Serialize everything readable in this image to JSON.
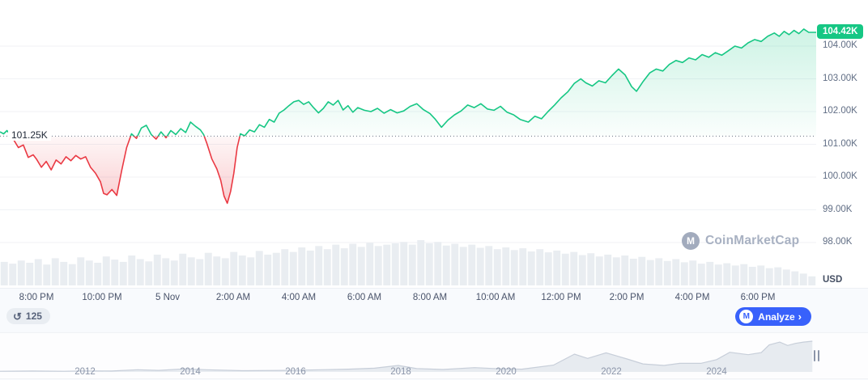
{
  "ui": {
    "watermark_text": "CoinMarketCap",
    "logo_letter": "M",
    "baseline_label": "101.25K",
    "price_badge": "104.42K",
    "unit_label": "USD",
    "toolbar": {
      "history_icon": "↺",
      "history_count": "125",
      "analyze_label": "Analyze",
      "chevron_right": "›"
    },
    "colors": {
      "up": "#16c784",
      "down": "#ea3943",
      "accent": "#3861fb"
    }
  },
  "chart_data": [
    {
      "type": "line",
      "ylabel": "USD",
      "baseline": 101.25,
      "last_price": 104.42,
      "ylim": [
        97.6,
        104.9
      ],
      "grid": true,
      "y_ticks": [
        {
          "label": "104.00K",
          "value": 104
        },
        {
          "label": "103.00K",
          "value": 103
        },
        {
          "label": "102.00K",
          "value": 102
        },
        {
          "label": "101.00K",
          "value": 101
        },
        {
          "label": "100.00K",
          "value": 100
        },
        {
          "label": "99.00K",
          "value": 99
        },
        {
          "label": "98.00K",
          "value": 98
        }
      ],
      "x_ticks": [
        {
          "label": "8:00 PM",
          "t": 1
        },
        {
          "label": "10:00 PM",
          "t": 3
        },
        {
          "label": "5 Nov",
          "t": 5
        },
        {
          "label": "2:00 AM",
          "t": 7
        },
        {
          "label": "4:00 AM",
          "t": 9
        },
        {
          "label": "6:00 AM",
          "t": 11
        },
        {
          "label": "8:00 AM",
          "t": 13
        },
        {
          "label": "10:00 AM",
          "t": 15
        },
        {
          "label": "12:00 PM",
          "t": 17
        },
        {
          "label": "2:00 PM",
          "t": 19
        },
        {
          "label": "4:00 PM",
          "t": 21
        },
        {
          "label": "6:00 PM",
          "t": 23
        }
      ],
      "series": [
        [
          -0.11,
          101.38
        ],
        [
          0,
          101.32
        ],
        [
          0.1,
          101.42
        ],
        [
          0.2,
          101.3
        ],
        [
          0.3,
          101.15
        ],
        [
          0.45,
          100.9
        ],
        [
          0.6,
          100.98
        ],
        [
          0.75,
          100.6
        ],
        [
          0.9,
          100.68
        ],
        [
          1.0,
          100.55
        ],
        [
          1.15,
          100.3
        ],
        [
          1.3,
          100.48
        ],
        [
          1.45,
          100.22
        ],
        [
          1.6,
          100.52
        ],
        [
          1.75,
          100.4
        ],
        [
          1.9,
          100.62
        ],
        [
          2.05,
          100.5
        ],
        [
          2.2,
          100.66
        ],
        [
          2.35,
          100.55
        ],
        [
          2.5,
          100.62
        ],
        [
          2.65,
          100.3
        ],
        [
          2.8,
          100.12
        ],
        [
          2.95,
          99.86
        ],
        [
          3.05,
          99.5
        ],
        [
          3.15,
          99.46
        ],
        [
          3.3,
          99.62
        ],
        [
          3.45,
          99.44
        ],
        [
          3.6,
          100.2
        ],
        [
          3.75,
          100.9
        ],
        [
          3.9,
          101.32
        ],
        [
          4.05,
          101.18
        ],
        [
          4.2,
          101.5
        ],
        [
          4.35,
          101.58
        ],
        [
          4.5,
          101.3
        ],
        [
          4.65,
          101.16
        ],
        [
          4.8,
          101.38
        ],
        [
          4.95,
          101.2
        ],
        [
          5.1,
          101.42
        ],
        [
          5.25,
          101.3
        ],
        [
          5.4,
          101.48
        ],
        [
          5.55,
          101.36
        ],
        [
          5.7,
          101.68
        ],
        [
          5.85,
          101.55
        ],
        [
          6.0,
          101.44
        ],
        [
          6.1,
          101.3
        ],
        [
          6.2,
          101.02
        ],
        [
          6.35,
          100.55
        ],
        [
          6.5,
          100.25
        ],
        [
          6.62,
          99.9
        ],
        [
          6.72,
          99.42
        ],
        [
          6.82,
          99.2
        ],
        [
          6.92,
          99.56
        ],
        [
          7.02,
          100.12
        ],
        [
          7.12,
          100.9
        ],
        [
          7.22,
          101.32
        ],
        [
          7.35,
          101.26
        ],
        [
          7.5,
          101.44
        ],
        [
          7.65,
          101.38
        ],
        [
          7.8,
          101.6
        ],
        [
          7.95,
          101.52
        ],
        [
          8.1,
          101.76
        ],
        [
          8.25,
          101.68
        ],
        [
          8.4,
          101.95
        ],
        [
          8.55,
          102.05
        ],
        [
          8.7,
          102.18
        ],
        [
          8.85,
          102.3
        ],
        [
          9.0,
          102.34
        ],
        [
          9.15,
          102.22
        ],
        [
          9.3,
          102.3
        ],
        [
          9.45,
          102.12
        ],
        [
          9.6,
          101.96
        ],
        [
          9.75,
          102.1
        ],
        [
          9.9,
          102.3
        ],
        [
          10.05,
          102.2
        ],
        [
          10.2,
          102.34
        ],
        [
          10.35,
          102.05
        ],
        [
          10.5,
          102.18
        ],
        [
          10.65,
          101.98
        ],
        [
          10.8,
          102.12
        ],
        [
          11.0,
          102.04
        ],
        [
          11.2,
          102.0
        ],
        [
          11.4,
          102.1
        ],
        [
          11.6,
          101.95
        ],
        [
          11.8,
          102.06
        ],
        [
          12.0,
          101.96
        ],
        [
          12.2,
          102.02
        ],
        [
          12.4,
          102.16
        ],
        [
          12.6,
          102.24
        ],
        [
          12.8,
          102.06
        ],
        [
          13.0,
          101.94
        ],
        [
          13.15,
          101.78
        ],
        [
          13.35,
          101.52
        ],
        [
          13.55,
          101.74
        ],
        [
          13.75,
          101.9
        ],
        [
          13.95,
          102.02
        ],
        [
          14.15,
          102.2
        ],
        [
          14.35,
          102.12
        ],
        [
          14.55,
          102.24
        ],
        [
          14.75,
          102.08
        ],
        [
          14.95,
          102.04
        ],
        [
          15.15,
          102.16
        ],
        [
          15.35,
          101.98
        ],
        [
          15.55,
          101.9
        ],
        [
          15.75,
          101.76
        ],
        [
          16.0,
          101.68
        ],
        [
          16.2,
          101.86
        ],
        [
          16.4,
          101.78
        ],
        [
          16.6,
          102.0
        ],
        [
          16.8,
          102.2
        ],
        [
          17.0,
          102.42
        ],
        [
          17.2,
          102.6
        ],
        [
          17.4,
          102.86
        ],
        [
          17.6,
          103.0
        ],
        [
          17.75,
          102.88
        ],
        [
          17.95,
          102.78
        ],
        [
          18.15,
          102.94
        ],
        [
          18.35,
          102.88
        ],
        [
          18.55,
          103.1
        ],
        [
          18.75,
          103.3
        ],
        [
          18.95,
          103.12
        ],
        [
          19.15,
          102.76
        ],
        [
          19.3,
          102.62
        ],
        [
          19.5,
          102.92
        ],
        [
          19.7,
          103.18
        ],
        [
          19.9,
          103.3
        ],
        [
          20.1,
          103.24
        ],
        [
          20.3,
          103.44
        ],
        [
          20.5,
          103.56
        ],
        [
          20.7,
          103.5
        ],
        [
          20.9,
          103.64
        ],
        [
          21.1,
          103.58
        ],
        [
          21.3,
          103.74
        ],
        [
          21.5,
          103.66
        ],
        [
          21.7,
          103.8
        ],
        [
          21.9,
          103.72
        ],
        [
          22.1,
          103.86
        ],
        [
          22.3,
          104.0
        ],
        [
          22.5,
          103.94
        ],
        [
          22.7,
          104.1
        ],
        [
          22.9,
          104.2
        ],
        [
          23.1,
          104.14
        ],
        [
          23.3,
          104.3
        ],
        [
          23.5,
          104.4
        ],
        [
          23.65,
          104.3
        ],
        [
          23.8,
          104.45
        ],
        [
          23.95,
          104.35
        ],
        [
          24.1,
          104.48
        ],
        [
          24.25,
          104.38
        ],
        [
          24.4,
          104.52
        ],
        [
          24.55,
          104.42
        ],
        [
          24.8,
          104.42
        ]
      ],
      "volume": [
        0.52,
        0.48,
        0.55,
        0.5,
        0.58,
        0.46,
        0.6,
        0.52,
        0.47,
        0.62,
        0.55,
        0.5,
        0.64,
        0.57,
        0.52,
        0.66,
        0.58,
        0.53,
        0.68,
        0.6,
        0.55,
        0.7,
        0.62,
        0.58,
        0.72,
        0.64,
        0.6,
        0.74,
        0.66,
        0.62,
        0.76,
        0.68,
        0.72,
        0.8,
        0.74,
        0.84,
        0.77,
        0.87,
        0.8,
        0.9,
        0.82,
        0.92,
        0.85,
        0.94,
        0.87,
        0.9,
        0.93,
        0.96,
        0.9,
        1.0,
        0.93,
        0.96,
        0.88,
        0.92,
        0.85,
        0.9,
        0.83,
        0.87,
        0.8,
        0.84,
        0.78,
        0.82,
        0.75,
        0.8,
        0.73,
        0.77,
        0.7,
        0.74,
        0.67,
        0.71,
        0.64,
        0.68,
        0.62,
        0.66,
        0.59,
        0.63,
        0.56,
        0.6,
        0.54,
        0.58,
        0.51,
        0.55,
        0.48,
        0.52,
        0.46,
        0.49,
        0.44,
        0.47,
        0.41,
        0.44,
        0.38,
        0.4,
        0.35,
        0.31,
        0.26,
        0.2
      ]
    },
    {
      "type": "area",
      "year_ticks": [
        {
          "label": "2012",
          "year": 2012
        },
        {
          "label": "2014",
          "year": 2014
        },
        {
          "label": "2016",
          "year": 2016
        },
        {
          "label": "2018",
          "year": 2018
        },
        {
          "label": "2020",
          "year": 2020
        },
        {
          "label": "2022",
          "year": 2022
        },
        {
          "label": "2024",
          "year": 2024
        }
      ],
      "points": [
        [
          2010.38,
          0.02
        ],
        [
          2011,
          0.03
        ],
        [
          2011.6,
          0.02
        ],
        [
          2012,
          0.035
        ],
        [
          2012.5,
          0.03
        ],
        [
          2013,
          0.07
        ],
        [
          2013.4,
          0.05
        ],
        [
          2013.9,
          0.1
        ],
        [
          2014.3,
          0.07
        ],
        [
          2015,
          0.04
        ],
        [
          2015.8,
          0.05
        ],
        [
          2016.5,
          0.07
        ],
        [
          2017,
          0.09
        ],
        [
          2017.5,
          0.12
        ],
        [
          2017.95,
          0.21
        ],
        [
          2018.3,
          0.11
        ],
        [
          2018.8,
          0.08
        ],
        [
          2019.4,
          0.14
        ],
        [
          2019.9,
          0.1
        ],
        [
          2020.3,
          0.09
        ],
        [
          2020.9,
          0.22
        ],
        [
          2021.3,
          0.58
        ],
        [
          2021.55,
          0.44
        ],
        [
          2021.9,
          0.62
        ],
        [
          2022.3,
          0.42
        ],
        [
          2022.6,
          0.26
        ],
        [
          2023,
          0.21
        ],
        [
          2023.3,
          0.28
        ],
        [
          2023.7,
          0.28
        ],
        [
          2024,
          0.4
        ],
        [
          2024.25,
          0.64
        ],
        [
          2024.6,
          0.56
        ],
        [
          2024.85,
          0.63
        ],
        [
          2025,
          0.88
        ],
        [
          2025.2,
          0.97
        ],
        [
          2025.35,
          0.86
        ],
        [
          2025.5,
          0.93
        ],
        [
          2025.65,
          0.97
        ],
        [
          2025.82,
          1.0
        ]
      ]
    }
  ]
}
